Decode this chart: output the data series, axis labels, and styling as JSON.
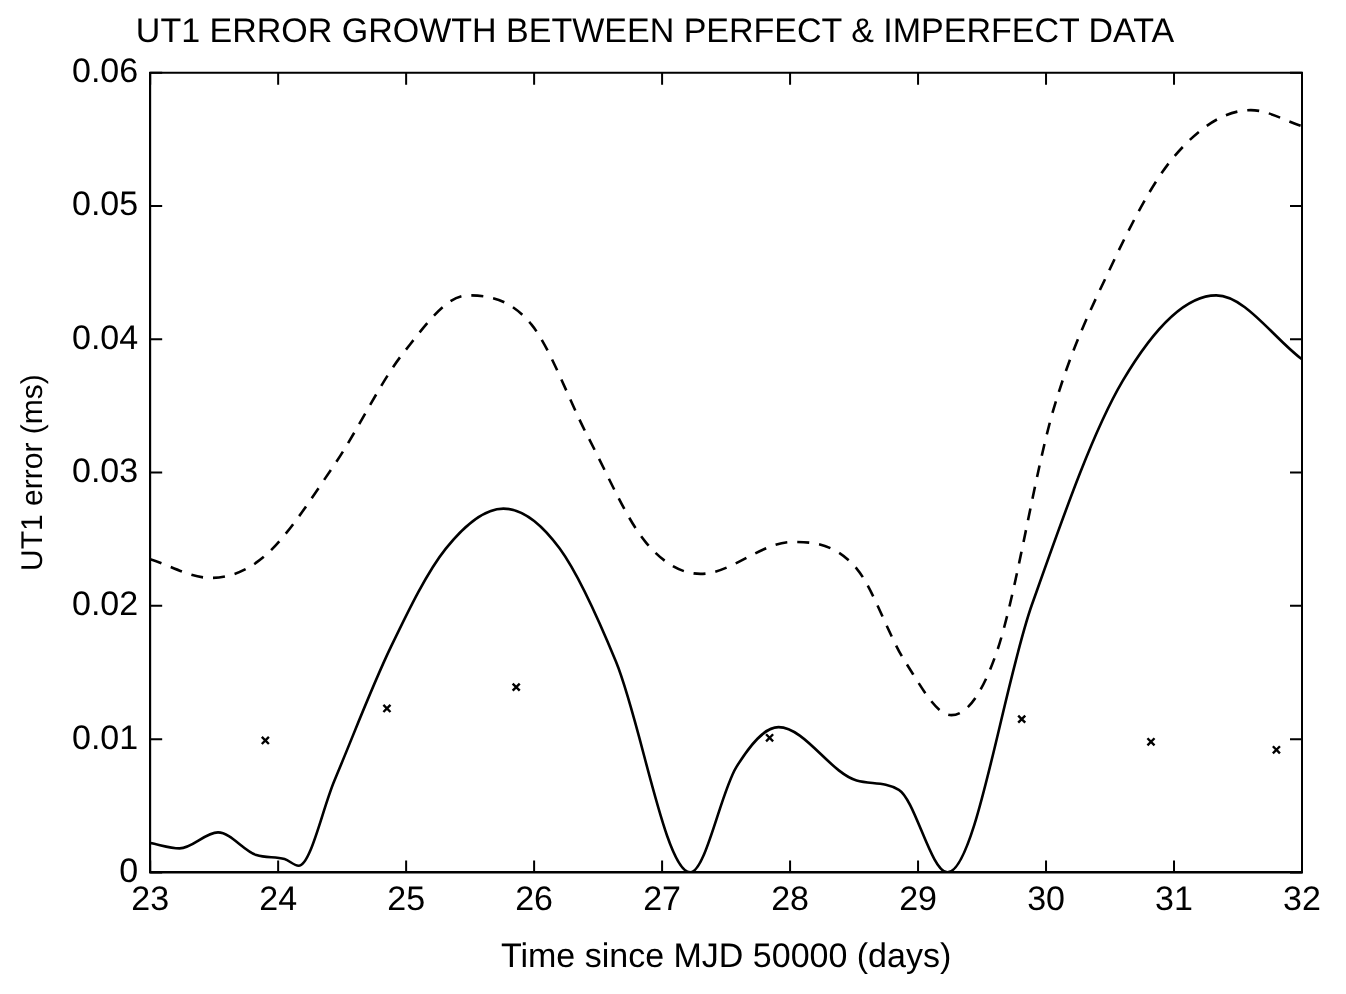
{
  "chart_data": {
    "type": "line",
    "title": "UT1 ERROR GROWTH BETWEEN PERFECT & IMPERFECT DATA",
    "xlabel": "Time since MJD 50000 (days)",
    "ylabel": "UT1 error (ms)",
    "xlim": [
      23,
      32
    ],
    "xticks": [
      23,
      24,
      25,
      26,
      27,
      28,
      29,
      30,
      31,
      32
    ],
    "ylim": [
      0,
      0.06
    ],
    "yticks": [
      0,
      0.01,
      0.02,
      0.03,
      0.04,
      0.05,
      0.06
    ],
    "grid": false,
    "legend": false,
    "series": [
      {
        "color": "#000000",
        "line_style": "dashed",
        "marker": "none",
        "x": [
          23,
          23.47,
          23.89,
          24.44,
          24.98,
          25.48,
          25.98,
          26.42,
          26.87,
          27.3,
          28.02,
          28.52,
          28.9,
          29.26,
          29.61,
          30.06,
          30.5,
          31,
          31.6,
          32
        ],
        "values": [
          0.0235,
          0.0221,
          0.0237,
          0.0306,
          0.039,
          0.0433,
          0.0411,
          0.0327,
          0.0248,
          0.0224,
          0.0248,
          0.0228,
          0.0158,
          0.0118,
          0.0164,
          0.0348,
          0.0453,
          0.0537,
          0.0572,
          0.056
        ]
      },
      {
        "color": "#000000",
        "line_style": "solid",
        "marker": "none",
        "x": [
          23,
          23.23,
          23.53,
          23.83,
          24.05,
          24.16,
          24.44,
          24.88,
          25.31,
          25.76,
          26.2,
          26.64,
          27.22,
          27.58,
          27.91,
          28.52,
          28.85,
          29.23,
          29.89,
          30.6,
          31.33,
          32
        ],
        "values": [
          0.0022,
          0.0018,
          0.003,
          0.0013,
          0.001,
          0.0005,
          0.0069,
          0.0169,
          0.0243,
          0.0273,
          0.0243,
          0.0158,
          0,
          0.0079,
          0.0109,
          0.0069,
          0.0062,
          0,
          0.0201,
          0.0369,
          0.0433,
          0.0385
        ]
      },
      {
        "type": "scatter",
        "color": "#000000",
        "marker": "cross",
        "x": [
          23.9,
          24.85,
          25.86,
          27.84,
          29.81,
          30.82,
          31.8
        ],
        "values": [
          0.0099,
          0.0123,
          0.0139,
          0.0101,
          0.0115,
          0.0098,
          0.0092
        ]
      }
    ]
  }
}
